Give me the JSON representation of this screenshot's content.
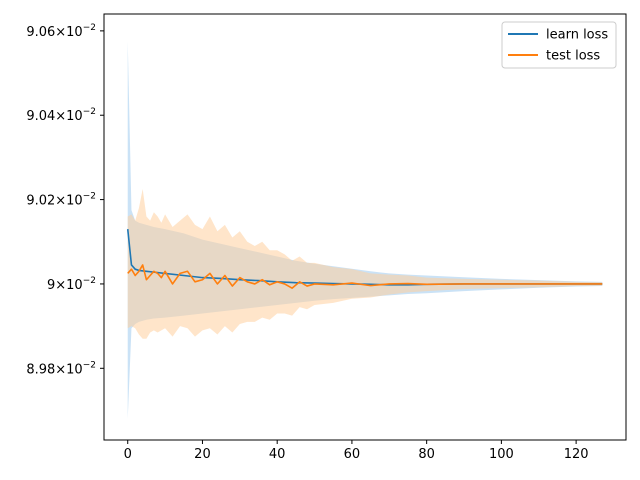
{
  "chart_data": {
    "type": "line",
    "title": "",
    "xlabel": "",
    "ylabel": "",
    "xlim": [
      -6.35,
      133.35
    ],
    "ylim": [
      0.08963,
      0.09064
    ],
    "x_ticks": [
      0,
      20,
      40,
      60,
      80,
      100,
      120
    ],
    "x_tick_labels": [
      "0",
      "20",
      "40",
      "60",
      "80",
      "100",
      "120"
    ],
    "y_ticks": [
      0.0898,
      0.09,
      0.0902,
      0.0904,
      0.0906
    ],
    "y_tick_labels": [
      {
        "mantissa": "8.98",
        "exp": "−2"
      },
      {
        "mantissa": "9",
        "exp": "−2"
      },
      {
        "mantissa": "9.02",
        "exp": "−2"
      },
      {
        "mantissa": "9.04",
        "exp": "−2"
      },
      {
        "mantissa": "9.06",
        "exp": "−2"
      }
    ],
    "tick_base": "×10",
    "legend": {
      "position": "top-right"
    },
    "series": [
      {
        "name": "learn loss",
        "color": "#1f77b4",
        "band_color": "#a6cef0",
        "x": [
          0,
          1,
          2,
          3,
          5,
          7,
          10,
          15,
          20,
          25,
          30,
          35,
          40,
          45,
          50,
          55,
          60,
          65,
          70,
          75,
          80,
          90,
          100,
          110,
          120,
          127
        ],
        "y": [
          0.09013,
          0.090045,
          0.090035,
          0.090032,
          0.09003,
          0.090028,
          0.090025,
          0.09002,
          0.090015,
          0.090013,
          0.09001,
          0.090008,
          0.090005,
          0.090003,
          0.090002,
          0.090001,
          0.09,
          0.089999,
          0.089998,
          0.089998,
          0.089999,
          0.09,
          0.09,
          0.09,
          0.09,
          0.09
        ],
        "band_upper": [
          0.090575,
          0.090175,
          0.09015,
          0.090145,
          0.09014,
          0.090135,
          0.09013,
          0.09012,
          0.090105,
          0.090095,
          0.090085,
          0.090075,
          0.090065,
          0.090055,
          0.090048,
          0.090042,
          0.090036,
          0.09003,
          0.090025,
          0.090022,
          0.09002,
          0.090016,
          0.090012,
          0.090009,
          0.090006,
          0.090005
        ],
        "band_lower": [
          0.08968,
          0.089895,
          0.089905,
          0.08991,
          0.089915,
          0.089918,
          0.08992,
          0.089925,
          0.08993,
          0.089935,
          0.08994,
          0.089945,
          0.08995,
          0.089955,
          0.08996,
          0.089964,
          0.089967,
          0.08997,
          0.089973,
          0.089976,
          0.089978,
          0.089983,
          0.089987,
          0.089991,
          0.089994,
          0.089995
        ]
      },
      {
        "name": "test loss",
        "color": "#ff7f0e",
        "band_color": "#ffcf9e",
        "x": [
          0,
          1,
          2,
          3,
          4,
          5,
          6,
          7,
          8,
          9,
          10,
          12,
          14,
          16,
          18,
          20,
          22,
          24,
          26,
          28,
          30,
          32,
          34,
          36,
          38,
          40,
          42,
          44,
          46,
          48,
          50,
          55,
          60,
          65,
          70,
          75,
          80,
          90,
          100,
          110,
          120,
          127
        ],
        "y": [
          0.090025,
          0.090035,
          0.09002,
          0.09003,
          0.090045,
          0.09001,
          0.09002,
          0.09003,
          0.090025,
          0.090015,
          0.09003,
          0.09,
          0.090025,
          0.09003,
          0.090005,
          0.09001,
          0.090025,
          0.09,
          0.09002,
          0.089995,
          0.090015,
          0.090005,
          0.09,
          0.09001,
          0.089998,
          0.090005,
          0.09,
          0.08999,
          0.090005,
          0.089995,
          0.09,
          0.089998,
          0.090002,
          0.089996,
          0.09,
          0.090001,
          0.089999,
          0.09,
          0.09,
          0.09,
          0.09,
          0.09
        ],
        "band_upper": [
          0.09016,
          0.090165,
          0.09015,
          0.09018,
          0.090225,
          0.09016,
          0.09015,
          0.09017,
          0.09016,
          0.090145,
          0.090165,
          0.090135,
          0.09015,
          0.090165,
          0.09014,
          0.09013,
          0.09016,
          0.090125,
          0.09014,
          0.09011,
          0.090125,
          0.0901,
          0.09009,
          0.0901,
          0.09008,
          0.09008,
          0.09007,
          0.090055,
          0.090065,
          0.09005,
          0.09005,
          0.09004,
          0.090035,
          0.090025,
          0.090022,
          0.09002,
          0.090015,
          0.090012,
          0.09001,
          0.090008,
          0.090005,
          0.090004
        ],
        "band_lower": [
          0.089895,
          0.0899,
          0.089895,
          0.08988,
          0.08987,
          0.08987,
          0.089885,
          0.08989,
          0.089885,
          0.08989,
          0.089895,
          0.089875,
          0.0899,
          0.089895,
          0.089875,
          0.08989,
          0.089895,
          0.08988,
          0.0899,
          0.089885,
          0.089905,
          0.08991,
          0.08991,
          0.08992,
          0.089915,
          0.08993,
          0.08993,
          0.089925,
          0.089945,
          0.08994,
          0.08995,
          0.089955,
          0.089965,
          0.089968,
          0.089975,
          0.08998,
          0.089983,
          0.089988,
          0.08999,
          0.089992,
          0.089995,
          0.089996
        ]
      }
    ]
  }
}
